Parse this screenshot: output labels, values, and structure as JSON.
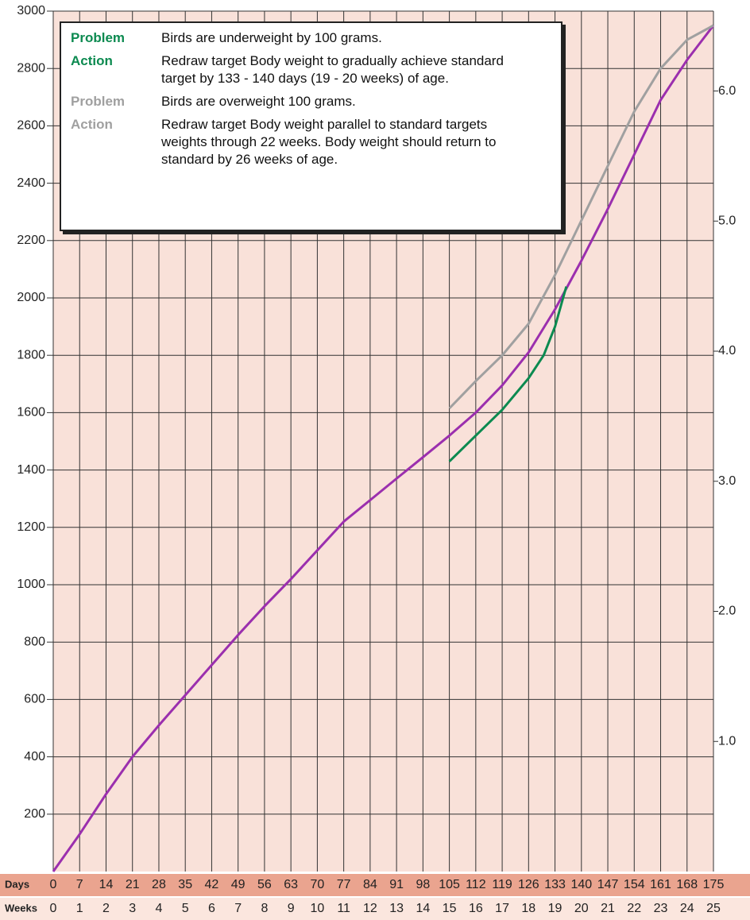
{
  "chart_data": {
    "type": "line",
    "annotations": [
      {
        "label": "Problem",
        "text": "Birds are underweight by 100 grams.",
        "color": "#0c8a50"
      },
      {
        "label": "Action",
        "text": "Redraw target Body weight to gradually achieve standard target by 133 - 140 days (19 - 20 weeks) of age.",
        "color": "#0c8a50"
      },
      {
        "label": "Problem",
        "text": "Birds are overweight 100 grams.",
        "color": "#a0a0a0"
      },
      {
        "label": "Action",
        "text": "Redraw target Body weight parallel to standard targets weights through 22 weeks. Body weight should return to standard by 26 weeks of age.",
        "color": "#a0a0a0"
      }
    ],
    "series": [
      {
        "color": "#9b2fae",
        "x": [
          0,
          7,
          14,
          21,
          28,
          35,
          42,
          49,
          56,
          63,
          70,
          77,
          84,
          91,
          98,
          105,
          112,
          119,
          126,
          133,
          140,
          147,
          154,
          161,
          168,
          175
        ],
        "values": [
          0,
          130,
          270,
          400,
          510,
          615,
          720,
          825,
          925,
          1020,
          1120,
          1220,
          1295,
          1370,
          1445,
          1520,
          1600,
          1695,
          1810,
          1960,
          2130,
          2310,
          2500,
          2690,
          2830,
          2950
        ]
      },
      {
        "color": "#0c8a50",
        "x": [
          105,
          112,
          119,
          126,
          130,
          133,
          136
        ],
        "values": [
          1430,
          1520,
          1610,
          1720,
          1800,
          1900,
          2040
        ]
      },
      {
        "color": "#a0a0a0",
        "x": [
          105,
          112,
          119,
          126,
          133,
          140,
          147,
          154,
          161,
          168,
          175
        ],
        "values": [
          1615,
          1710,
          1800,
          1910,
          2080,
          2270,
          2460,
          2650,
          2800,
          2900,
          2950
        ]
      }
    ],
    "xlim": [
      0,
      175
    ],
    "xticks": [
      0,
      7,
      14,
      21,
      28,
      35,
      42,
      49,
      56,
      63,
      70,
      77,
      84,
      91,
      98,
      105,
      112,
      119,
      126,
      133,
      140,
      147,
      154,
      161,
      168,
      175
    ],
    "days_label": "Days",
    "weeks_label": "Weeks",
    "week_labels": [
      0,
      1,
      2,
      3,
      4,
      5,
      6,
      7,
      8,
      9,
      10,
      11,
      12,
      13,
      14,
      15,
      16,
      17,
      18,
      19,
      20,
      21,
      22,
      23,
      24,
      25
    ],
    "ylim": [
      0,
      3000
    ],
    "yticks": [
      200,
      400,
      600,
      800,
      1000,
      1200,
      1400,
      1600,
      1800,
      2000,
      2200,
      2400,
      2600,
      2800,
      3000
    ],
    "y2lim": [
      0,
      6.614
    ],
    "y2ticks": [
      {
        "value": 1,
        "label": "1.0"
      },
      {
        "value": 2,
        "label": "2.0"
      },
      {
        "value": 3,
        "label": "3.0"
      },
      {
        "value": 4,
        "label": "4.0"
      },
      {
        "value": 5,
        "label": "5.0"
      },
      {
        "value": 6,
        "label": "6.0"
      }
    ],
    "grid": true
  }
}
